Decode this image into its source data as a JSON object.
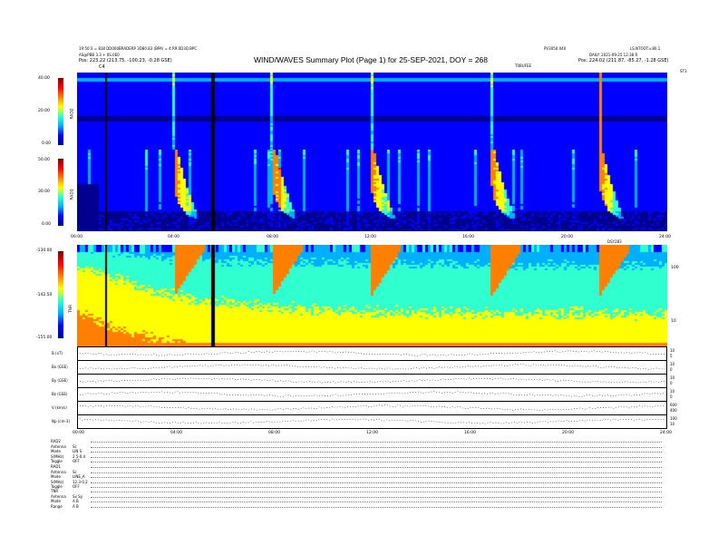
{
  "header": {
    "title": "WIND/WAVES Summary Plot (Page 1) for 25-SEP-2021, DOY = 268",
    "left_lines": [
      "19:50:3 = 818 DD000BRADERP 3D80.83 (BPA) = 4.R9.0D3Q.BPC",
      "AS@PBB 3.3 + 0S.0E0",
      "Pos:   223.22 (213.75, -100.23, -0.28 GSE)"
    ],
    "right_lines": [
      "LS.NTOOT.v.80.1",
      "DAILY: 2021-09-25 12:38 R",
      "Pos:   224.02 (211.87, -85.27, -1.28 GSE)"
    ],
    "mid_right": "PV3050.040",
    "sub_right": "T0BUFEE",
    "corner_y": "ST3",
    "corner_x": "V",
    "marker_c4": "C4"
  },
  "panels": {
    "rad2": {
      "label": "RAD2",
      "ticks": [
        "40.00",
        "20.00",
        "0.00"
      ]
    },
    "rad1": {
      "label": "RAD1",
      "ticks": [
        "50.00",
        "30.00",
        "0.00"
      ]
    },
    "tnr": {
      "label": "TNR",
      "ticks": [
        "-130.00",
        "-142.50",
        "-155.00"
      ],
      "right_ticks": [
        "100",
        "10"
      ]
    },
    "time_ticks": [
      "00:00",
      "04:00",
      "08:00",
      "12:00",
      "16:00",
      "20:00",
      "24:00"
    ],
    "tnr_time_extra": "DSY283"
  },
  "line_panels": [
    {
      "label": "B (nT)",
      "ticks": [
        "10",
        "5"
      ]
    },
    {
      "label": "Bx (GSE)",
      "ticks": [
        "10",
        "0"
      ]
    },
    {
      "label": "By (GSE)",
      "ticks": [
        "10",
        "0"
      ]
    },
    {
      "label": "Bz (GSE)",
      "ticks": [
        "10",
        "0"
      ]
    },
    {
      "label": "V (km/s)",
      "ticks": [
        "600",
        "400"
      ]
    },
    {
      "label": "Np (cm-3)",
      "ticks": [
        "100",
        "10"
      ]
    }
  ],
  "footer": {
    "rad2_block": [
      "RAD2",
      "Antenna",
      "Mode",
      "S(MHz)",
      "Toggle"
    ],
    "rad2_vals": [
      "",
      "Sc",
      "LIN S",
      "2.5-0.4",
      "OFF"
    ],
    "rad1_block": [
      "RAD1",
      "Antenna",
      "Mode",
      "S(MHz)",
      "Toggle"
    ],
    "rad1_vals": [
      "",
      "Sc",
      "LINE_A",
      "12.3-0.2",
      "OFF"
    ],
    "tnr_block": [
      "TNR",
      "Antenna",
      "Mode",
      "Range"
    ],
    "tnr_vals": [
      "",
      "Sx Sy",
      "A B",
      "A B"
    ]
  },
  "chart_data": {
    "type": "heatmap",
    "title": "WIND/WAVES Summary Plot (Page 1) for 25-SEP-2021, DOY = 268",
    "x_range_hours": [
      0,
      24
    ],
    "panels": [
      {
        "name": "RAD2",
        "ylim": [
          0,
          40
        ]
      },
      {
        "name": "RAD1",
        "ylim": [
          0,
          50
        ]
      },
      {
        "name": "TNR",
        "ylim": [
          -155,
          -130
        ]
      }
    ],
    "burst_times_hours": [
      3.9,
      7.9,
      11.9,
      16.8,
      21.2
    ],
    "colormap": [
      "#00008f",
      "#0000ff",
      "#00b0ff",
      "#30ffd0",
      "#ffff00",
      "#ff8000",
      "#ff0000",
      "#800000"
    ]
  }
}
